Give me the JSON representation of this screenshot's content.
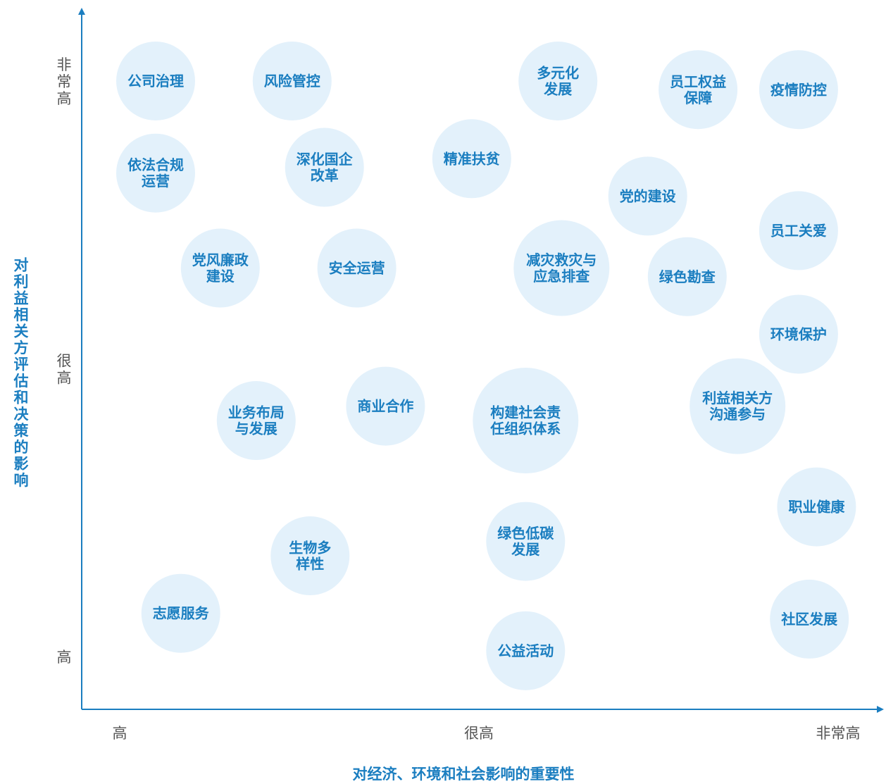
{
  "chart_data": {
    "type": "scatter",
    "xlabel": "对经济、环境和社会影响的重要性",
    "ylabel": "对利益相关方评估和决策的影响",
    "x_ticks": [
      {
        "value": 1,
        "label": "高"
      },
      {
        "value": 2,
        "label": "很高"
      },
      {
        "value": 3,
        "label": "非常高"
      }
    ],
    "y_ticks": [
      {
        "value": 1,
        "label": "高"
      },
      {
        "value": 2,
        "label": "很高"
      },
      {
        "value": 3,
        "label": "非常高"
      }
    ],
    "xlim": [
      0.9,
      3.1
    ],
    "ylim": [
      0.6,
      3.25
    ],
    "colors": {
      "axis": "#1b7ec0",
      "bubble": "#e3f1fb",
      "label": "#1b7ec0",
      "tick": "#555555"
    },
    "points": [
      {
        "label": "公司治理",
        "x": 1.1,
        "y": 3.0
      },
      {
        "label": "风险管控",
        "x": 1.48,
        "y": 3.0
      },
      {
        "label": "多元化发展",
        "x": 2.22,
        "y": 3.0
      },
      {
        "label": "员工权益保障",
        "x": 2.61,
        "y": 2.97
      },
      {
        "label": "疫情防控",
        "x": 2.89,
        "y": 2.97
      },
      {
        "label": "依法合规运营",
        "x": 1.1,
        "y": 2.68
      },
      {
        "label": "深化国企改革",
        "x": 1.57,
        "y": 2.7
      },
      {
        "label": "精准扶贫",
        "x": 1.98,
        "y": 2.73
      },
      {
        "label": "党的建设",
        "x": 2.47,
        "y": 2.6
      },
      {
        "label": "员工关爱",
        "x": 2.89,
        "y": 2.48
      },
      {
        "label": "党风廉政建设",
        "x": 1.28,
        "y": 2.35
      },
      {
        "label": "安全运营",
        "x": 1.66,
        "y": 2.35
      },
      {
        "label": "减灾救灾与应急排查",
        "x": 2.23,
        "y": 2.35
      },
      {
        "label": "绿色勘查",
        "x": 2.58,
        "y": 2.32
      },
      {
        "label": "环境保护",
        "x": 2.89,
        "y": 2.12
      },
      {
        "label": "利益相关方沟通参与",
        "x": 2.72,
        "y": 1.87
      },
      {
        "label": "业务布局与发展",
        "x": 1.38,
        "y": 1.82
      },
      {
        "label": "商业合作",
        "x": 1.74,
        "y": 1.87
      },
      {
        "label": "构建社会责任组织体系",
        "x": 2.13,
        "y": 1.82
      },
      {
        "label": "职业健康",
        "x": 2.94,
        "y": 1.52
      },
      {
        "label": "生物多样性",
        "x": 1.53,
        "y": 1.35
      },
      {
        "label": "绿色低碳发展",
        "x": 2.13,
        "y": 1.4
      },
      {
        "label": "志愿服务",
        "x": 1.17,
        "y": 1.15
      },
      {
        "label": "社区发展",
        "x": 2.92,
        "y": 1.13
      },
      {
        "label": "公益活动",
        "x": 2.13,
        "y": 1.02
      }
    ]
  }
}
